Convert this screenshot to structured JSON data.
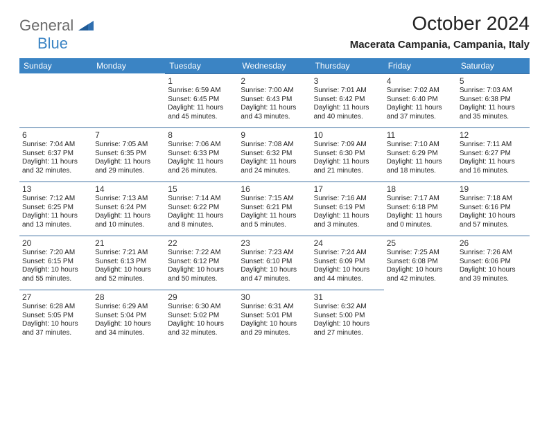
{
  "brand": {
    "text1": "General",
    "text2": "Blue"
  },
  "title": "October 2024",
  "location": "Macerata Campania, Campania, Italy",
  "colors": {
    "header_bg": "#3b84c4",
    "header_text": "#ffffff",
    "rule": "#3b6ea0",
    "logo_gray": "#6b6b6b",
    "logo_blue": "#3b84c4"
  },
  "day_headers": [
    "Sunday",
    "Monday",
    "Tuesday",
    "Wednesday",
    "Thursday",
    "Friday",
    "Saturday"
  ],
  "weeks": [
    [
      {
        "blank": true
      },
      {
        "blank": true
      },
      {
        "day": "1",
        "sunrise": "6:59 AM",
        "sunset": "6:45 PM",
        "daylight": "11 hours and 45 minutes."
      },
      {
        "day": "2",
        "sunrise": "7:00 AM",
        "sunset": "6:43 PM",
        "daylight": "11 hours and 43 minutes."
      },
      {
        "day": "3",
        "sunrise": "7:01 AM",
        "sunset": "6:42 PM",
        "daylight": "11 hours and 40 minutes."
      },
      {
        "day": "4",
        "sunrise": "7:02 AM",
        "sunset": "6:40 PM",
        "daylight": "11 hours and 37 minutes."
      },
      {
        "day": "5",
        "sunrise": "7:03 AM",
        "sunset": "6:38 PM",
        "daylight": "11 hours and 35 minutes."
      }
    ],
    [
      {
        "day": "6",
        "sunrise": "7:04 AM",
        "sunset": "6:37 PM",
        "daylight": "11 hours and 32 minutes."
      },
      {
        "day": "7",
        "sunrise": "7:05 AM",
        "sunset": "6:35 PM",
        "daylight": "11 hours and 29 minutes."
      },
      {
        "day": "8",
        "sunrise": "7:06 AM",
        "sunset": "6:33 PM",
        "daylight": "11 hours and 26 minutes."
      },
      {
        "day": "9",
        "sunrise": "7:08 AM",
        "sunset": "6:32 PM",
        "daylight": "11 hours and 24 minutes."
      },
      {
        "day": "10",
        "sunrise": "7:09 AM",
        "sunset": "6:30 PM",
        "daylight": "11 hours and 21 minutes."
      },
      {
        "day": "11",
        "sunrise": "7:10 AM",
        "sunset": "6:29 PM",
        "daylight": "11 hours and 18 minutes."
      },
      {
        "day": "12",
        "sunrise": "7:11 AM",
        "sunset": "6:27 PM",
        "daylight": "11 hours and 16 minutes."
      }
    ],
    [
      {
        "day": "13",
        "sunrise": "7:12 AM",
        "sunset": "6:25 PM",
        "daylight": "11 hours and 13 minutes."
      },
      {
        "day": "14",
        "sunrise": "7:13 AM",
        "sunset": "6:24 PM",
        "daylight": "11 hours and 10 minutes."
      },
      {
        "day": "15",
        "sunrise": "7:14 AM",
        "sunset": "6:22 PM",
        "daylight": "11 hours and 8 minutes."
      },
      {
        "day": "16",
        "sunrise": "7:15 AM",
        "sunset": "6:21 PM",
        "daylight": "11 hours and 5 minutes."
      },
      {
        "day": "17",
        "sunrise": "7:16 AM",
        "sunset": "6:19 PM",
        "daylight": "11 hours and 3 minutes."
      },
      {
        "day": "18",
        "sunrise": "7:17 AM",
        "sunset": "6:18 PM",
        "daylight": "11 hours and 0 minutes."
      },
      {
        "day": "19",
        "sunrise": "7:18 AM",
        "sunset": "6:16 PM",
        "daylight": "10 hours and 57 minutes."
      }
    ],
    [
      {
        "day": "20",
        "sunrise": "7:20 AM",
        "sunset": "6:15 PM",
        "daylight": "10 hours and 55 minutes."
      },
      {
        "day": "21",
        "sunrise": "7:21 AM",
        "sunset": "6:13 PM",
        "daylight": "10 hours and 52 minutes."
      },
      {
        "day": "22",
        "sunrise": "7:22 AM",
        "sunset": "6:12 PM",
        "daylight": "10 hours and 50 minutes."
      },
      {
        "day": "23",
        "sunrise": "7:23 AM",
        "sunset": "6:10 PM",
        "daylight": "10 hours and 47 minutes."
      },
      {
        "day": "24",
        "sunrise": "7:24 AM",
        "sunset": "6:09 PM",
        "daylight": "10 hours and 44 minutes."
      },
      {
        "day": "25",
        "sunrise": "7:25 AM",
        "sunset": "6:08 PM",
        "daylight": "10 hours and 42 minutes."
      },
      {
        "day": "26",
        "sunrise": "7:26 AM",
        "sunset": "6:06 PM",
        "daylight": "10 hours and 39 minutes."
      }
    ],
    [
      {
        "day": "27",
        "sunrise": "6:28 AM",
        "sunset": "5:05 PM",
        "daylight": "10 hours and 37 minutes."
      },
      {
        "day": "28",
        "sunrise": "6:29 AM",
        "sunset": "5:04 PM",
        "daylight": "10 hours and 34 minutes."
      },
      {
        "day": "29",
        "sunrise": "6:30 AM",
        "sunset": "5:02 PM",
        "daylight": "10 hours and 32 minutes."
      },
      {
        "day": "30",
        "sunrise": "6:31 AM",
        "sunset": "5:01 PM",
        "daylight": "10 hours and 29 minutes."
      },
      {
        "day": "31",
        "sunrise": "6:32 AM",
        "sunset": "5:00 PM",
        "daylight": "10 hours and 27 minutes."
      },
      {
        "blank": true
      },
      {
        "blank": true
      }
    ]
  ],
  "labels": {
    "sunrise": "Sunrise:",
    "sunset": "Sunset:",
    "daylight": "Daylight:"
  }
}
